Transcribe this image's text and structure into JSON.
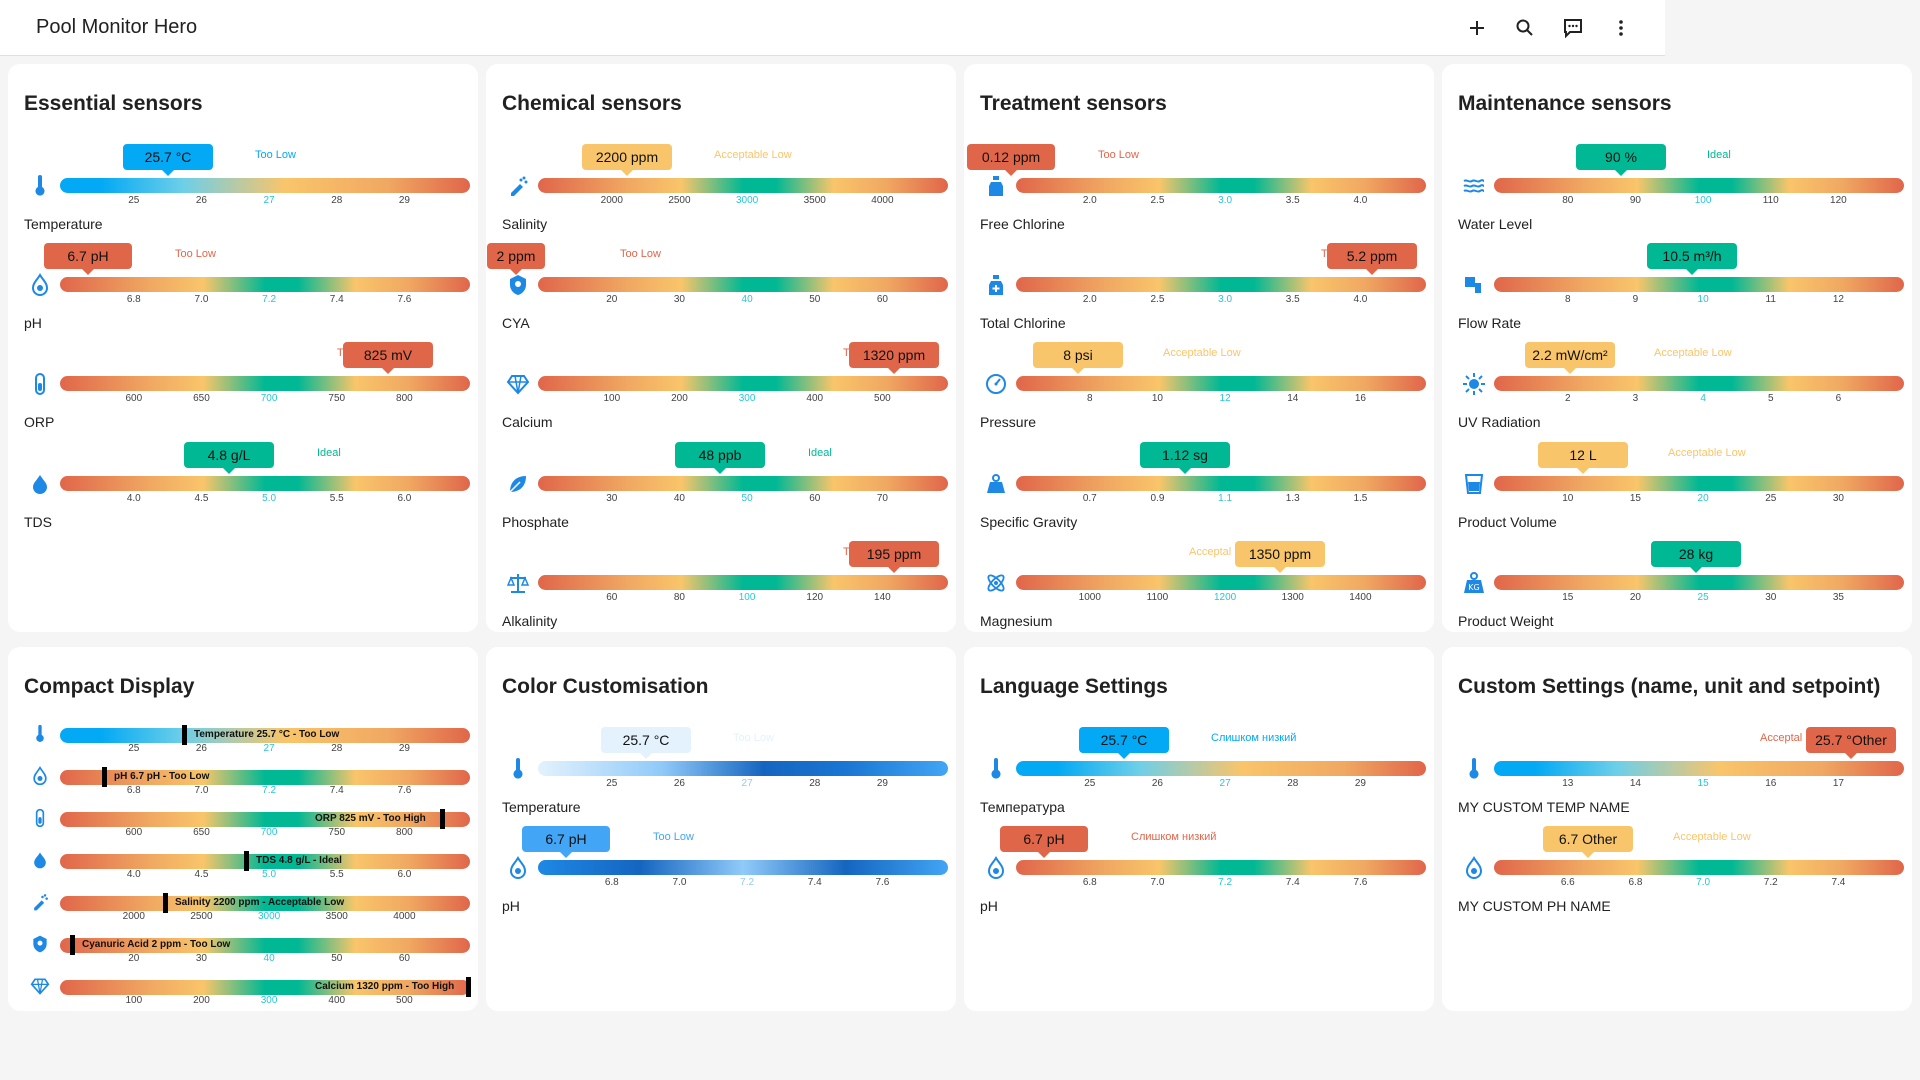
{
  "app": {
    "title": "Pool Monitor Hero"
  },
  "icons": {
    "add": "plus-icon",
    "search": "search-icon",
    "assist": "comment-icon",
    "menu": "dots-vertical-icon"
  },
  "colors": {
    "cyan": "#03a9f4",
    "red": "#e0664a",
    "yellow": "#f9c56a",
    "green": "#00b894",
    "lightblue": "#e3f2fd",
    "blue": "#1e88e5"
  },
  "essential": {
    "title": "Essential sensors",
    "rows": [
      {
        "name": "Temperature",
        "value": "25.7 °C",
        "status": "Too Low",
        "ticks": [
          "25",
          "26",
          "27",
          "28",
          "29"
        ]
      },
      {
        "name": "pH",
        "value": "6.7 pH",
        "status": "Too Low",
        "ticks": [
          "6.8",
          "7.0",
          "7.2",
          "7.4",
          "7.6"
        ]
      },
      {
        "name": "ORP",
        "value": "825 mV",
        "status": "T",
        "ticks": [
          "600",
          "650",
          "700",
          "750",
          "800"
        ]
      },
      {
        "name": "TDS",
        "value": "4.8 g/L",
        "status": "Ideal",
        "ticks": [
          "4.0",
          "4.5",
          "5.0",
          "5.5",
          "6.0"
        ]
      }
    ]
  },
  "chemical": {
    "title": "Chemical sensors",
    "rows": [
      {
        "name": "Salinity",
        "value": "2200 ppm",
        "status": "Acceptable Low",
        "ticks": [
          "2000",
          "2500",
          "3000",
          "3500",
          "4000"
        ]
      },
      {
        "name": "CYA",
        "value": "2 ppm",
        "status": "Too Low",
        "ticks": [
          "20",
          "30",
          "40",
          "50",
          "60"
        ]
      },
      {
        "name": "Calcium",
        "value": "1320 ppm",
        "status": "T",
        "ticks": [
          "100",
          "200",
          "300",
          "400",
          "500"
        ]
      },
      {
        "name": "Phosphate",
        "value": "48 ppb",
        "status": "Ideal",
        "ticks": [
          "30",
          "40",
          "50",
          "60",
          "70"
        ]
      },
      {
        "name": "Alkalinity",
        "value": "195 ppm",
        "status": "T",
        "ticks": [
          "60",
          "80",
          "100",
          "120",
          "140"
        ]
      }
    ]
  },
  "treatment": {
    "title": "Treatment sensors",
    "rows": [
      {
        "name": "Free Chlorine",
        "value": "0.12 ppm",
        "status": "Too Low",
        "ticks": [
          "2.0",
          "2.5",
          "3.0",
          "3.5",
          "4.0"
        ]
      },
      {
        "name": "Total Chlorine",
        "value": "5.2 ppm",
        "status": "T",
        "ticks": [
          "2.0",
          "2.5",
          "3.0",
          "3.5",
          "4.0"
        ]
      },
      {
        "name": "Pressure",
        "value": "8 psi",
        "status": "Acceptable Low",
        "ticks": [
          "8",
          "10",
          "12",
          "14",
          "16"
        ]
      },
      {
        "name": "Specific Gravity",
        "value": "1.12 sg",
        "status": "Ideal",
        "ticks": [
          "0.7",
          "0.9",
          "1.1",
          "1.3",
          "1.5"
        ]
      },
      {
        "name": "Magnesium",
        "value": "1350 ppm",
        "status": "Acceptal",
        "ticks": [
          "1000",
          "1100",
          "1200",
          "1300",
          "1400"
        ]
      }
    ]
  },
  "maintenance": {
    "title": "Maintenance sensors",
    "rows": [
      {
        "name": "Water Level",
        "value": "90 %",
        "status": "Ideal",
        "ticks": [
          "80",
          "90",
          "100",
          "110",
          "120"
        ]
      },
      {
        "name": "Flow Rate",
        "value": "10.5 m³/h",
        "status": "",
        "ticks": [
          "8",
          "9",
          "10",
          "11",
          "12"
        ]
      },
      {
        "name": "UV Radiation",
        "value": "2.2 mW/cm²",
        "status": "Acceptable Low",
        "ticks": [
          "2",
          "3",
          "4",
          "5",
          "6"
        ]
      },
      {
        "name": "Product Volume",
        "value": "12 L",
        "status": "Acceptable Low",
        "ticks": [
          "10",
          "15",
          "20",
          "25",
          "30"
        ]
      },
      {
        "name": "Product Weight",
        "value": "28 kg",
        "status": "",
        "ticks": [
          "15",
          "20",
          "25",
          "30",
          "35"
        ]
      }
    ]
  },
  "compact": {
    "title": "Compact Display",
    "rows": [
      {
        "label": "Temperature 25.7 °C - Too Low",
        "ticks": [
          "25",
          "26",
          "27",
          "28",
          "29"
        ]
      },
      {
        "label": "pH 6.7 pH - Too Low",
        "ticks": [
          "6.8",
          "7.0",
          "7.2",
          "7.4",
          "7.6"
        ]
      },
      {
        "label": "ORP 825 mV - Too High",
        "ticks": [
          "600",
          "650",
          "700",
          "750",
          "800"
        ]
      },
      {
        "label": "TDS 4.8 g/L - Ideal",
        "ticks": [
          "4.0",
          "4.5",
          "5.0",
          "5.5",
          "6.0"
        ]
      },
      {
        "label": "Salinity 2200 ppm - Acceptable Low",
        "ticks": [
          "2000",
          "2500",
          "3000",
          "3500",
          "4000"
        ]
      },
      {
        "label": "Cyanuric Acid 2 ppm - Too Low",
        "ticks": [
          "20",
          "30",
          "40",
          "50",
          "60"
        ]
      },
      {
        "label": "Calcium 1320 ppm - Too High",
        "ticks": [
          "100",
          "200",
          "300",
          "400",
          "500"
        ]
      }
    ]
  },
  "color_custom": {
    "title": "Color Customisation",
    "rows": [
      {
        "name": "Temperature",
        "value": "25.7 °C",
        "status": "Too Low",
        "ticks": [
          "25",
          "26",
          "27",
          "28",
          "29"
        ]
      },
      {
        "name": "pH",
        "value": "6.7 pH",
        "status": "Too Low",
        "ticks": [
          "6.8",
          "7.0",
          "7.2",
          "7.4",
          "7.6"
        ]
      }
    ]
  },
  "language": {
    "title": "Language Settings",
    "rows": [
      {
        "name": "Температура",
        "value": "25.7 °C",
        "status": "Слишком низкий",
        "ticks": [
          "25",
          "26",
          "27",
          "28",
          "29"
        ]
      },
      {
        "name": "pH",
        "value": "6.7 pH",
        "status": "Слишком низкий",
        "ticks": [
          "6.8",
          "7.0",
          "7.2",
          "7.4",
          "7.6"
        ]
      }
    ]
  },
  "custom": {
    "title": "Custom Settings (name, unit and setpoint)",
    "rows": [
      {
        "name": "MY CUSTOM TEMP NAME",
        "value": "25.7 °Other",
        "status": "Acceptal",
        "ticks": [
          "13",
          "14",
          "15",
          "16",
          "17"
        ]
      },
      {
        "name": "MY CUSTOM PH NAME",
        "value": "6.7 Other",
        "status": "Acceptable Low",
        "ticks": [
          "6.6",
          "6.8",
          "7.0",
          "7.2",
          "7.4"
        ]
      }
    ]
  }
}
